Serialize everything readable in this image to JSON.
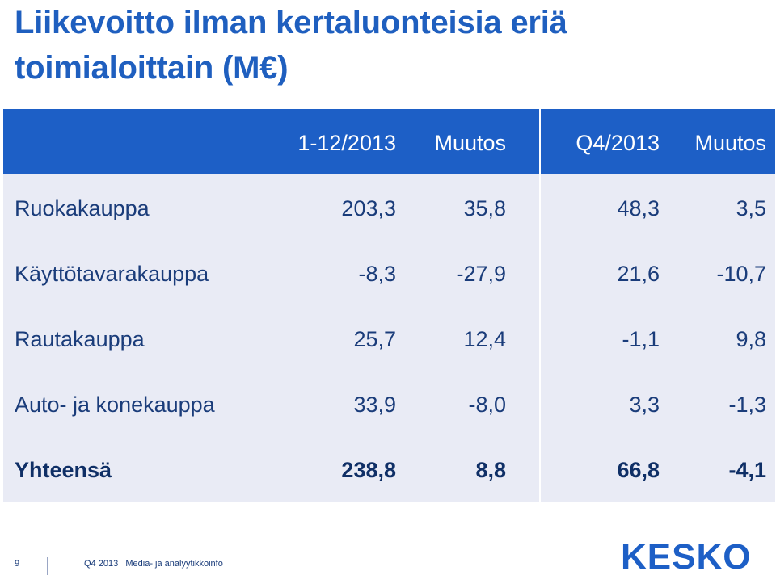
{
  "title": {
    "line1": "Liikevoitto ilman kertaluonteisia eriä",
    "line2": "toimialoittain (M€)"
  },
  "table": {
    "headers": [
      "1-12/2013",
      "Muutos",
      "Q4/2013",
      "Muutos"
    ],
    "rows": [
      {
        "label": "Ruokakauppa",
        "values": [
          "203,3",
          "35,8",
          "48,3",
          "3,5"
        ]
      },
      {
        "label": "Käyttötavarakauppa",
        "values": [
          "-8,3",
          "-27,9",
          "21,6",
          "-10,7"
        ]
      },
      {
        "label": "Rautakauppa",
        "values": [
          "25,7",
          "12,4",
          "-1,1",
          "9,8"
        ]
      },
      {
        "label": "Auto- ja konekauppa",
        "values": [
          "33,9",
          "-8,0",
          "3,3",
          "-1,3"
        ]
      }
    ],
    "total": {
      "label": "Yhteensä",
      "values": [
        "238,8",
        "8,8",
        "66,8",
        "-4,1"
      ]
    }
  },
  "footer": {
    "page_number": "9",
    "text": "Q4 2013   Media- ja analyytikkoinfo"
  },
  "logo": {
    "text": "KESKO"
  },
  "colors": {
    "title": "#1f5fbf",
    "header_band": "#1d5fc6",
    "table_bg": "#e9ebf5",
    "text": "#1a3c7a"
  }
}
